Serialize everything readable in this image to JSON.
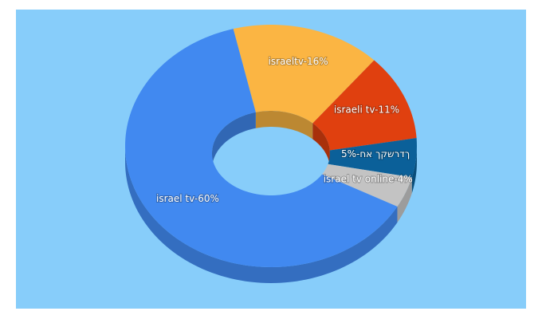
{
  "chart_data": {
    "type": "pie3d",
    "values": [
      16,
      11,
      5,
      4,
      60
    ],
    "value_labels": [
      "israeltv-16%",
      "israeli tv-11%",
      "ךדרשקך אח-5%",
      "israel tv online-4%",
      "israel tv-60%"
    ],
    "colors": [
      "#fbb543",
      "#e0400f",
      "#0b6099",
      "#c3c3c3",
      "#4189f0"
    ]
  }
}
